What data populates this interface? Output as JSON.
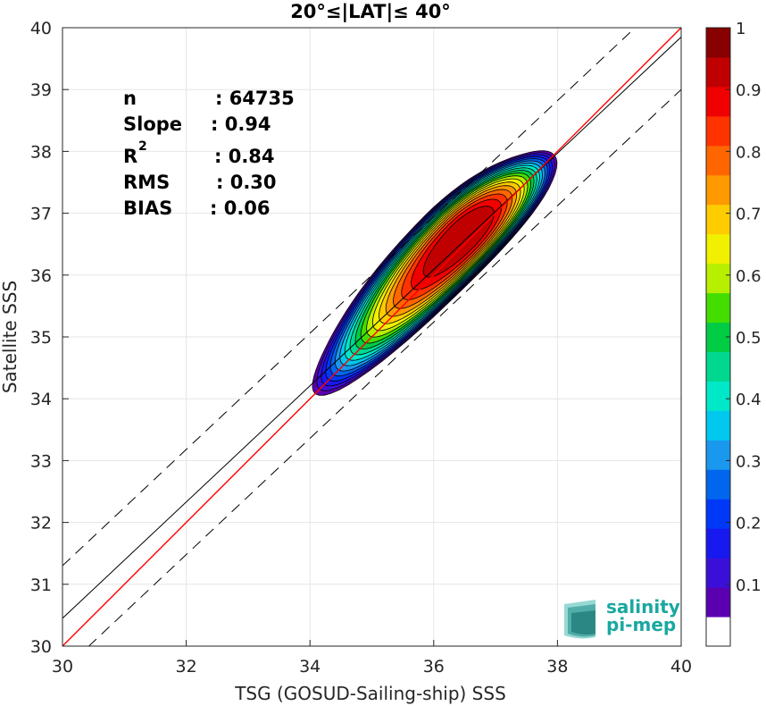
{
  "chart_data": {
    "type": "heatmap",
    "title": "20°≤|LAT|≤ 40°",
    "xlabel": "TSG (GOSUD-Sailing-ship) SSS",
    "ylabel": "Satellite SSS",
    "xlim": [
      30,
      40
    ],
    "ylim": [
      30,
      40
    ],
    "xticks": [
      "30",
      "32",
      "34",
      "36",
      "38",
      "40"
    ],
    "yticks": [
      "30",
      "31",
      "32",
      "33",
      "34",
      "35",
      "36",
      "37",
      "38",
      "39",
      "40"
    ],
    "grid": true,
    "stats": [
      {
        "label": "n",
        "value": ": 64735"
      },
      {
        "label": "Slope",
        "value": ": 0.94"
      },
      {
        "label": "R",
        "sup": "2",
        "value": ": 0.84"
      },
      {
        "label": "RMS",
        "value": ": 0.30"
      },
      {
        "label": "BIAS",
        "value": ": 0.06"
      }
    ],
    "lines": {
      "identity": {
        "slope": 1,
        "intercept": 0,
        "color": "#ff0000"
      },
      "fit": {
        "slope": 0.94,
        "intercept": 2.25,
        "color": "#000000"
      },
      "envelope_offset": 0.85
    },
    "density_peak": {
      "x": 36.5,
      "y": 36.65
    },
    "density_levels": [
      0.05,
      0.1,
      0.15,
      0.2,
      0.25,
      0.3,
      0.35,
      0.4,
      0.45,
      0.5,
      0.55,
      0.6,
      0.65,
      0.7,
      0.75,
      0.8,
      0.85,
      0.9,
      0.95
    ],
    "colorbar": {
      "ticks": [
        "0.1",
        "0.2",
        "0.3",
        "0.4",
        "0.5",
        "0.6",
        "0.7",
        "0.8",
        "0.9",
        "1"
      ],
      "range": [
        0,
        1
      ],
      "colors": [
        "#ffffff",
        "#5a00b0",
        "#3a10d8",
        "#1818f0",
        "#0038f8",
        "#0066ee",
        "#1a98ee",
        "#00c8ee",
        "#00e8c8",
        "#00d890",
        "#00cc44",
        "#44dd00",
        "#b8ee00",
        "#f0f000",
        "#ffcc00",
        "#ff9900",
        "#ff6600",
        "#ff3300",
        "#f00000",
        "#c00000",
        "#880000"
      ]
    },
    "logo": {
      "line1": "salinity",
      "line2": "pi-mep"
    }
  }
}
